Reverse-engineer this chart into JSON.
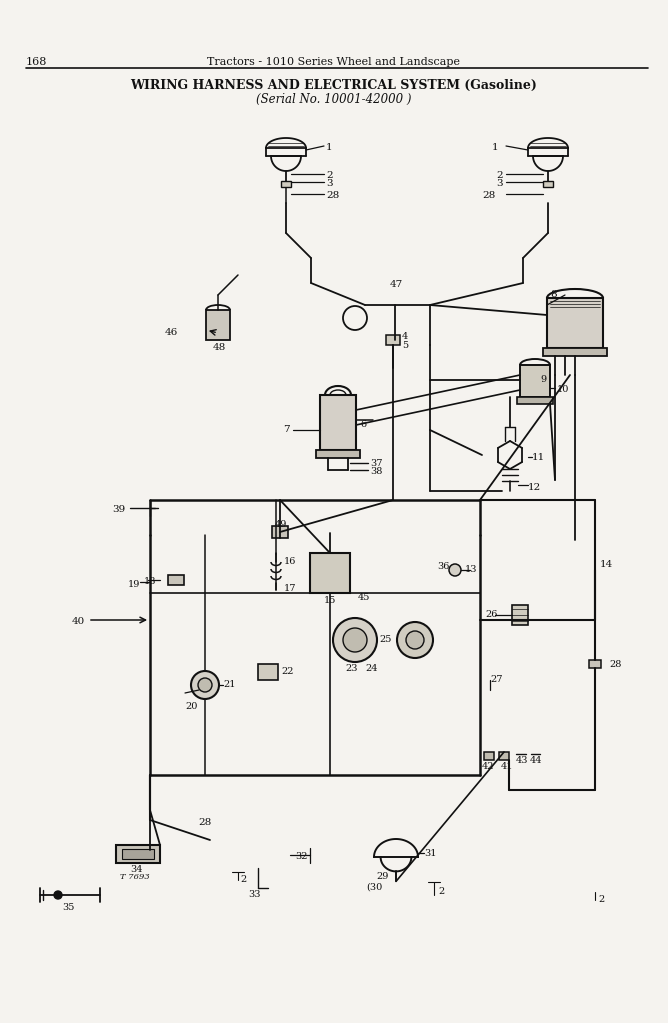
{
  "page_number": "168",
  "header_line": "Tractors - 1010 Series Wheel and Landscape",
  "title_line1": "WIRING HARNESS AND ELECTRICAL SYSTEM (Gasoline)",
  "title_line2": "(Serial No. 10001-42000 )",
  "bg_color": "#f5f3ef",
  "line_color": "#111111",
  "text_color": "#111111",
  "footnote": "T 7693"
}
